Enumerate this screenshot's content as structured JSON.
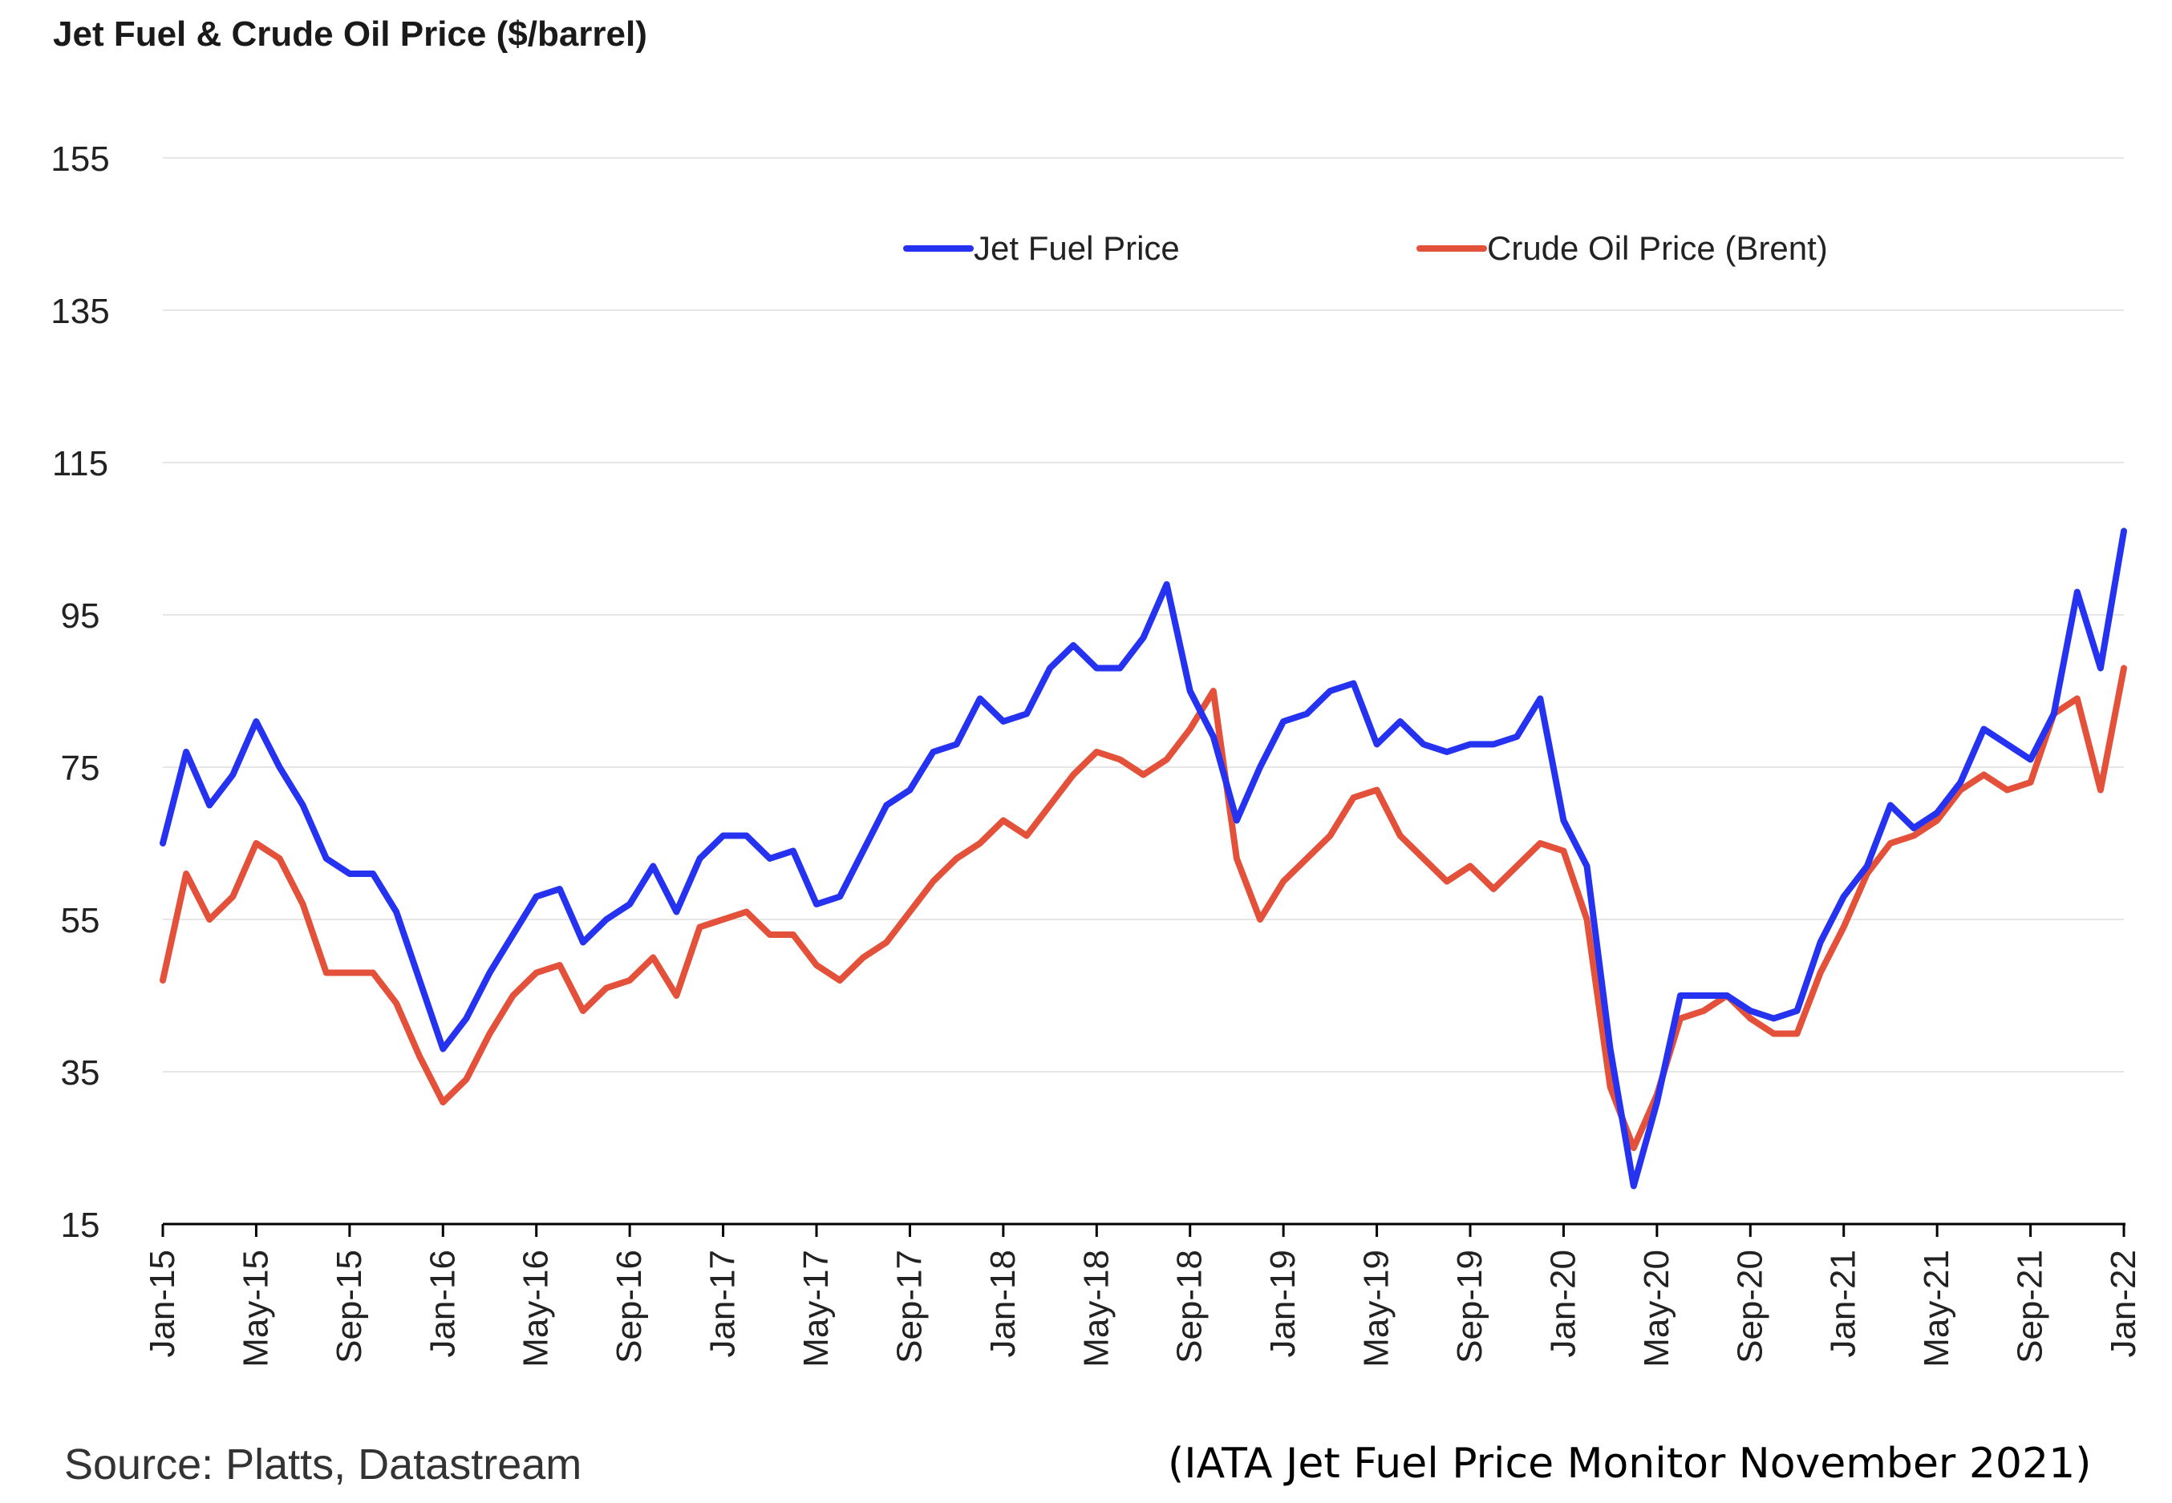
{
  "source": "Source: Platts, Datastream",
  "citation": "(IATA Jet Fuel Price Monitor November 2021)",
  "colors": {
    "jet": "#2532f0",
    "crude": "#e4513a",
    "grid": "#e6e6e6",
    "axis": "#000000"
  },
  "chart_data": {
    "type": "line",
    "title": "Jet Fuel & Crude Oil Price ($/barrel)",
    "xlabel": "",
    "ylabel": "",
    "ylim": [
      15,
      155
    ],
    "yticks": [
      "155",
      "135",
      "115",
      "95",
      "75",
      "55",
      "35",
      "15"
    ],
    "ytick_values": [
      155,
      135,
      115,
      95,
      75,
      55,
      35,
      15
    ],
    "xticks": [
      "Jan-15",
      "May-15",
      "Sep-15",
      "Jan-16",
      "May-16",
      "Sep-16",
      "Jan-17",
      "May-17",
      "Sep-17",
      "Jan-18",
      "May-18",
      "Sep-18",
      "Jan-19",
      "May-19",
      "Sep-19",
      "Jan-20",
      "May-20",
      "Sep-20",
      "Jan-21",
      "May-21",
      "Sep-21",
      "Jan-22"
    ],
    "xlim": [
      "2015-01",
      "2022-01"
    ],
    "grid": true,
    "legend_position": "top",
    "series": [
      {
        "name": "Jet Fuel Price",
        "color": "#2532f0",
        "x": [
          "2015-01",
          "2015-02",
          "2015-03",
          "2015-04",
          "2015-05",
          "2015-06",
          "2015-07",
          "2015-08",
          "2015-09",
          "2015-10",
          "2015-11",
          "2015-12",
          "2016-01",
          "2016-02",
          "2016-03",
          "2016-04",
          "2016-05",
          "2016-06",
          "2016-07",
          "2016-08",
          "2016-09",
          "2016-10",
          "2016-11",
          "2016-12",
          "2017-01",
          "2017-02",
          "2017-03",
          "2017-04",
          "2017-05",
          "2017-06",
          "2017-07",
          "2017-08",
          "2017-09",
          "2017-10",
          "2017-11",
          "2017-12",
          "2018-01",
          "2018-02",
          "2018-03",
          "2018-04",
          "2018-05",
          "2018-06",
          "2018-07",
          "2018-08",
          "2018-09",
          "2018-10",
          "2018-11",
          "2018-12",
          "2019-01",
          "2019-02",
          "2019-03",
          "2019-04",
          "2019-05",
          "2019-06",
          "2019-07",
          "2019-08",
          "2019-09",
          "2019-10",
          "2019-11",
          "2019-12",
          "2020-01",
          "2020-02",
          "2020-03",
          "2020-04",
          "2020-05",
          "2020-06",
          "2020-07",
          "2020-08",
          "2020-09",
          "2020-10",
          "2020-11",
          "2020-12",
          "2021-01",
          "2021-02",
          "2021-03",
          "2021-04",
          "2021-05",
          "2021-06",
          "2021-07",
          "2021-08",
          "2021-09",
          "2021-10",
          "2021-11",
          "2021-12",
          "2022-01"
        ],
        "values": [
          65,
          77,
          70,
          74,
          81,
          75,
          70,
          63,
          61,
          61,
          56,
          47,
          38,
          42,
          48,
          53,
          58,
          59,
          52,
          55,
          57,
          62,
          56,
          63,
          66,
          66,
          63,
          64,
          57,
          58,
          64,
          70,
          72,
          77,
          78,
          84,
          81,
          82,
          88,
          91,
          88,
          88,
          92,
          99,
          85,
          79,
          68,
          75,
          81,
          82,
          85,
          86,
          78,
          81,
          78,
          77,
          78,
          78,
          79,
          84,
          68,
          62,
          38,
          20,
          31,
          45,
          45,
          45,
          43,
          42,
          43,
          52,
          58,
          62,
          70,
          67,
          69,
          73,
          80,
          78,
          76,
          82,
          98,
          88,
          106
        ],
        "data_labels": []
      },
      {
        "name": "Crude Oil Price (Brent)",
        "color": "#e4513a",
        "x": [
          "2015-01",
          "2015-02",
          "2015-03",
          "2015-04",
          "2015-05",
          "2015-06",
          "2015-07",
          "2015-08",
          "2015-09",
          "2015-10",
          "2015-11",
          "2015-12",
          "2016-01",
          "2016-02",
          "2016-03",
          "2016-04",
          "2016-05",
          "2016-06",
          "2016-07",
          "2016-08",
          "2016-09",
          "2016-10",
          "2016-11",
          "2016-12",
          "2017-01",
          "2017-02",
          "2017-03",
          "2017-04",
          "2017-05",
          "2017-06",
          "2017-07",
          "2017-08",
          "2017-09",
          "2017-10",
          "2017-11",
          "2017-12",
          "2018-01",
          "2018-02",
          "2018-03",
          "2018-04",
          "2018-05",
          "2018-06",
          "2018-07",
          "2018-08",
          "2018-09",
          "2018-10",
          "2018-11",
          "2018-12",
          "2019-01",
          "2019-02",
          "2019-03",
          "2019-04",
          "2019-05",
          "2019-06",
          "2019-07",
          "2019-08",
          "2019-09",
          "2019-10",
          "2019-11",
          "2019-12",
          "2020-01",
          "2020-02",
          "2020-03",
          "2020-04",
          "2020-05",
          "2020-06",
          "2020-07",
          "2020-08",
          "2020-09",
          "2020-10",
          "2020-11",
          "2020-12",
          "2021-01",
          "2021-02",
          "2021-03",
          "2021-04",
          "2021-05",
          "2021-06",
          "2021-07",
          "2021-08",
          "2021-09",
          "2021-10",
          "2021-11",
          "2021-12",
          "2022-01"
        ],
        "values": [
          47,
          61,
          55,
          58,
          65,
          63,
          57,
          48,
          48,
          48,
          44,
          37,
          31,
          34,
          40,
          45,
          48,
          49,
          43,
          46,
          47,
          50,
          45,
          54,
          55,
          56,
          53,
          53,
          49,
          47,
          50,
          52,
          56,
          60,
          63,
          65,
          68,
          66,
          70,
          74,
          77,
          76,
          74,
          76,
          80,
          85,
          63,
          55,
          60,
          63,
          66,
          71,
          72,
          66,
          63,
          60,
          62,
          59,
          62,
          65,
          64,
          55,
          33,
          25,
          32,
          42,
          43,
          45,
          42,
          40,
          40,
          48,
          54,
          61,
          65,
          66,
          68,
          72,
          74,
          72,
          73,
          82,
          84,
          72,
          88
        ],
        "data_labels": []
      }
    ]
  }
}
